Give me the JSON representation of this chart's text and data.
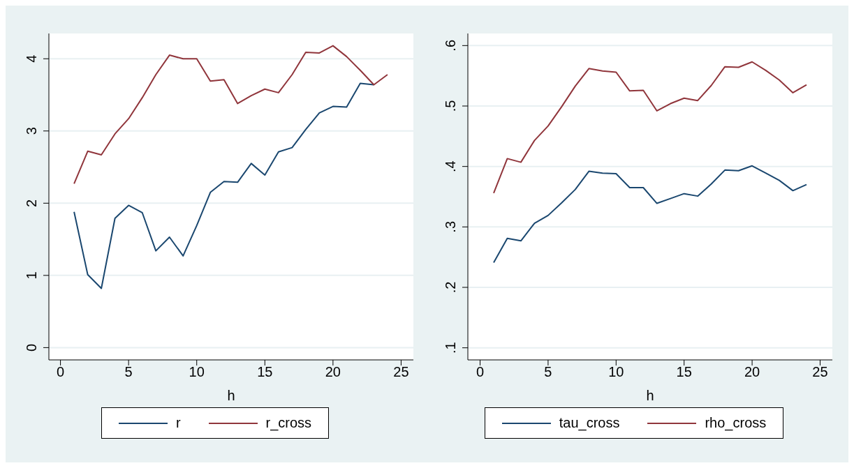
{
  "chart_data": [
    {
      "type": "line",
      "xlabel": "h",
      "x": [
        1,
        2,
        3,
        4,
        5,
        6,
        7,
        8,
        9,
        10,
        11,
        12,
        13,
        14,
        15,
        16,
        17,
        18,
        19,
        20,
        21,
        22,
        23,
        24
      ],
      "series": [
        {
          "name": "r",
          "color": "#1a476f",
          "values": [
            1.88,
            1.01,
            0.82,
            1.79,
            1.97,
            1.87,
            1.34,
            1.53,
            1.27,
            1.69,
            2.15,
            2.3,
            2.29,
            2.55,
            2.39,
            2.71,
            2.77,
            3.02,
            3.25,
            3.34,
            3.33,
            3.66,
            3.64,
            null
          ]
        },
        {
          "name": "r_cross",
          "color": "#90353b",
          "values": [
            2.27,
            2.72,
            2.67,
            2.96,
            3.17,
            3.46,
            3.78,
            4.05,
            4.0,
            4.0,
            3.69,
            3.71,
            3.38,
            3.49,
            3.58,
            3.53,
            3.78,
            4.09,
            4.08,
            4.18,
            4.03,
            3.84,
            3.64,
            3.78
          ]
        }
      ],
      "xlim": [
        -0.85,
        25.9
      ],
      "xticks": [
        0,
        5,
        10,
        15,
        20,
        25
      ],
      "ylim": [
        -0.17,
        4.35
      ],
      "yticks": [
        0,
        1,
        2,
        3,
        4
      ],
      "grid": "y",
      "legend": "bottom"
    },
    {
      "type": "line",
      "xlabel": "h",
      "x": [
        1,
        2,
        3,
        4,
        5,
        6,
        7,
        8,
        9,
        10,
        11,
        12,
        13,
        14,
        15,
        16,
        17,
        18,
        19,
        20,
        21,
        22,
        23,
        24
      ],
      "series": [
        {
          "name": "tau_cross",
          "color": "#1a476f",
          "values": [
            0.241,
            0.281,
            0.277,
            0.306,
            0.319,
            0.34,
            0.362,
            0.392,
            0.389,
            0.388,
            0.365,
            0.365,
            0.339,
            0.347,
            0.355,
            0.351,
            0.371,
            0.394,
            0.393,
            0.401,
            0.389,
            0.377,
            0.36,
            0.37
          ]
        },
        {
          "name": "rho_cross",
          "color": "#90353b",
          "values": [
            0.356,
            0.413,
            0.407,
            0.443,
            0.467,
            0.499,
            0.533,
            0.562,
            0.558,
            0.556,
            0.525,
            0.526,
            0.492,
            0.504,
            0.513,
            0.509,
            0.534,
            0.565,
            0.564,
            0.573,
            0.559,
            0.543,
            0.522,
            0.535
          ]
        }
      ],
      "xlim": [
        -0.9,
        25.9
      ],
      "xticks": [
        0,
        5,
        10,
        15,
        20,
        25
      ],
      "ylim": [
        0.08,
        0.62
      ],
      "yticks": [
        {
          "value": 0.1,
          "label": ".1"
        },
        {
          "value": 0.2,
          "label": ".2"
        },
        {
          "value": 0.3,
          "label": ".3"
        },
        {
          "value": 0.4,
          "label": ".4"
        },
        {
          "value": 0.5,
          "label": ".5"
        },
        {
          "value": 0.6,
          "label": ".6"
        }
      ],
      "grid": "y",
      "legend": "bottom"
    }
  ]
}
